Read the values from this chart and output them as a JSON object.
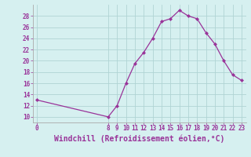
{
  "x": [
    0,
    8,
    9,
    10,
    11,
    12,
    13,
    14,
    15,
    16,
    17,
    18,
    19,
    20,
    21,
    22,
    23
  ],
  "y": [
    13,
    10,
    12,
    16,
    19.5,
    21.5,
    24,
    27,
    27.5,
    29,
    28,
    27.5,
    25,
    23,
    20,
    17.5,
    16.5
  ],
  "line_color": "#993399",
  "marker": "D",
  "marker_size": 2,
  "bg_color": "#d6f0f0",
  "grid_color": "#b0d4d4",
  "xlabel": "Windchill (Refroidissement éolien,°C)",
  "xlim": [
    -0.5,
    23.5
  ],
  "ylim": [
    9,
    30
  ],
  "yticks": [
    10,
    12,
    14,
    16,
    18,
    20,
    22,
    24,
    26,
    28
  ],
  "xticks": [
    0,
    8,
    9,
    10,
    11,
    12,
    13,
    14,
    15,
    16,
    17,
    18,
    19,
    20,
    21,
    22,
    23
  ],
  "tick_color": "#993399",
  "tick_fontsize": 5.5,
  "xlabel_fontsize": 7.0,
  "spine_color": "#aaaaaa"
}
